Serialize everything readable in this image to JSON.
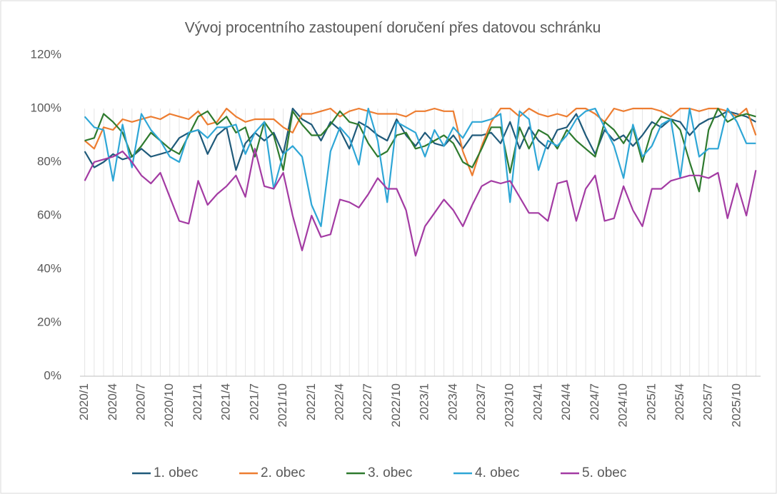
{
  "chart_data": {
    "type": "line",
    "title": "Vývoj procentního zastoupení doručení přes datovou schránku",
    "categories": [
      "2020/1",
      null,
      null,
      "2020/4",
      null,
      null,
      "2020/7",
      null,
      null,
      "2020/10",
      null,
      null,
      "2021/1",
      null,
      null,
      "2021/4",
      null,
      null,
      "2021/7",
      null,
      null,
      "2021/10",
      null,
      null,
      "2022/1",
      null,
      null,
      "2022/4",
      null,
      null,
      "2022/7",
      null,
      null,
      "2022/10",
      null,
      null,
      "2023/1",
      null,
      null,
      "2023/4",
      null,
      null,
      "2023/7",
      null,
      null,
      "2023/10",
      null,
      null,
      "2024/1",
      null,
      null,
      "2024/4",
      null,
      null,
      "2024/7",
      null,
      null,
      "2024/10",
      null,
      null,
      "2025/1",
      null,
      null,
      "2025/4",
      null,
      null,
      "2025/7",
      null,
      null,
      "2025/10",
      null,
      null
    ],
    "series": [
      {
        "name": "1. obec",
        "color": "#1f5a7a",
        "values": [
          84,
          78,
          80,
          83,
          81,
          82,
          85,
          82,
          83,
          84,
          89,
          91,
          92,
          83,
          90,
          93,
          77,
          87,
          91,
          88,
          91,
          83,
          100,
          96,
          94,
          88,
          95,
          92,
          85,
          95,
          93,
          90,
          88,
          96,
          90,
          86,
          91,
          87,
          86,
          90,
          85,
          90,
          90,
          91,
          87,
          95,
          85,
          93,
          88,
          85,
          92,
          93,
          98,
          90,
          83,
          92,
          88,
          90,
          86,
          90,
          95,
          93,
          96,
          95,
          90,
          94,
          96,
          97,
          99,
          98,
          97,
          95
        ]
      },
      {
        "name": "2. obec",
        "color": "#ed7d31",
        "values": [
          88,
          85,
          93,
          92,
          96,
          95,
          96,
          97,
          96,
          98,
          97,
          96,
          99,
          94,
          95,
          100,
          97,
          95,
          96,
          96,
          96,
          93,
          91,
          98,
          98,
          99,
          100,
          97,
          99,
          100,
          99,
          98,
          98,
          98,
          97,
          99,
          99,
          100,
          99,
          99,
          84,
          75,
          86,
          95,
          100,
          100,
          97,
          100,
          98,
          97,
          98,
          97,
          100,
          100,
          98,
          95,
          100,
          99,
          100,
          100,
          100,
          99,
          97,
          100,
          100,
          99,
          100,
          100,
          99,
          97,
          100,
          90
        ]
      },
      {
        "name": "3. obec",
        "color": "#2e7a2e",
        "values": [
          88,
          89,
          98,
          95,
          91,
          82,
          86,
          91,
          88,
          85,
          83,
          90,
          97,
          99,
          94,
          97,
          91,
          93,
          82,
          95,
          90,
          77,
          99,
          94,
          90,
          90,
          94,
          99,
          95,
          94,
          87,
          82,
          84,
          90,
          91,
          85,
          86,
          88,
          90,
          87,
          80,
          78,
          85,
          93,
          93,
          76,
          93,
          85,
          92,
          90,
          85,
          92,
          88,
          85,
          82,
          95,
          92,
          87,
          93,
          80,
          92,
          97,
          96,
          92,
          80,
          69,
          92,
          100,
          95,
          97,
          98,
          97
        ]
      },
      {
        "name": "4. obec",
        "color": "#2ea6d6",
        "values": [
          97,
          93,
          92,
          73,
          94,
          78,
          98,
          92,
          88,
          82,
          80,
          91,
          92,
          89,
          93,
          93,
          94,
          83,
          91,
          95,
          70,
          83,
          86,
          82,
          64,
          56,
          84,
          93,
          89,
          79,
          100,
          88,
          65,
          95,
          93,
          91,
          82,
          92,
          86,
          93,
          89,
          95,
          95,
          96,
          98,
          65,
          99,
          96,
          77,
          88,
          86,
          90,
          96,
          99,
          100,
          93,
          86,
          74,
          94,
          82,
          86,
          94,
          96,
          74,
          100,
          82,
          85,
          85,
          100,
          95,
          87,
          87
        ]
      },
      {
        "name": "5. obec",
        "color": "#a33ba3",
        "values": [
          73,
          80,
          81,
          82,
          84,
          80,
          75,
          72,
          76,
          67,
          58,
          57,
          73,
          64,
          68,
          71,
          75,
          67,
          85,
          71,
          70,
          76,
          60,
          47,
          60,
          52,
          53,
          66,
          65,
          63,
          68,
          74,
          70,
          70,
          62,
          45,
          56,
          61,
          66,
          62,
          56,
          64,
          71,
          73,
          72,
          73,
          67,
          61,
          61,
          58,
          72,
          73,
          58,
          70,
          75,
          58,
          59,
          71,
          62,
          56,
          70,
          70,
          73,
          74,
          75,
          75,
          74,
          76,
          59,
          72,
          60,
          77
        ]
      }
    ],
    "ylim": [
      0,
      120
    ],
    "yticks": [
      {
        "value": 0,
        "label": "0%"
      },
      {
        "value": 20,
        "label": "20%"
      },
      {
        "value": 40,
        "label": "40%"
      },
      {
        "value": 60,
        "label": "60%"
      },
      {
        "value": 80,
        "label": "80%"
      },
      {
        "value": 100,
        "label": "100%"
      },
      {
        "value": 120,
        "label": "120%"
      }
    ],
    "legend": "bottom"
  }
}
